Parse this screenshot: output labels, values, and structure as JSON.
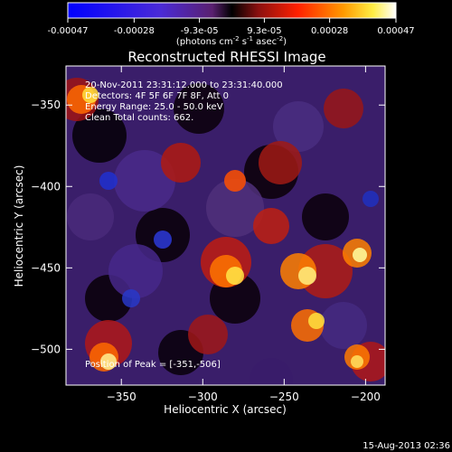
{
  "colorbar": {
    "ticks": [
      "-0.00047",
      "-0.00028",
      "-9.3e-05",
      "9.3e-05",
      "0.00028",
      "0.00047"
    ],
    "unit_main": "(photons cm",
    "unit_e1": "-2",
    "unit_mid": " s",
    "unit_e2": "-1",
    "unit_mid2": " asec",
    "unit_e3": "-2",
    "unit_end": ")"
  },
  "chart_data": {
    "type": "heatmap",
    "title": "Reconstructed RHESSI Image",
    "xlabel": "Heliocentric X (arcsec)",
    "ylabel": "Heliocentric Y (arcsec)",
    "xlim": [
      -384,
      -188
    ],
    "ylim": [
      -522,
      -326
    ],
    "xticks": [
      -350,
      -300,
      -250,
      -200
    ],
    "yticks": [
      -350,
      -400,
      -450,
      -500
    ],
    "colorbar_range": [
      -0.00047,
      0.00047
    ],
    "annotations": [
      "20-Nov-2011 23:31:12.000 to 23:31:40.000",
      "Detectors: 4F 5F 6F 7F 8F, Att 0",
      "Energy Range: 25.0 - 50.0 keV",
      "Clean     Total counts: 662."
    ],
    "peak_label": "Position of Peak = [-351,-506]",
    "peak": [
      -351,
      -506
    ]
  },
  "footer": {
    "date": "15-Aug-2013 02:36"
  }
}
